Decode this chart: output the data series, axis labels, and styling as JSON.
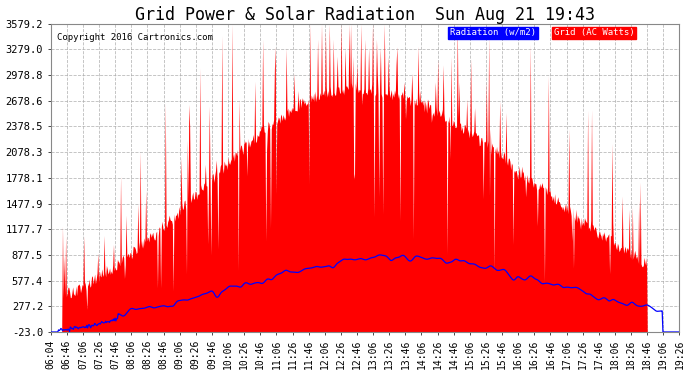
{
  "title": "Grid Power & Solar Radiation  Sun Aug 21 19:43",
  "copyright": "Copyright 2016 Cartronics.com",
  "legend_radiation": "Radiation (w/m2)",
  "legend_grid": "Grid (AC Watts)",
  "y_ticks": [
    -23.0,
    277.2,
    577.4,
    877.5,
    1177.7,
    1477.9,
    1778.1,
    2078.3,
    2378.5,
    2678.6,
    2978.8,
    3279.0,
    3579.2
  ],
  "y_min": -23.0,
  "y_max": 3579.2,
  "background_color": "#ffffff",
  "plot_bg_color": "#ffffff",
  "grid_color": "#aaaaaa",
  "red_color": "#ff0000",
  "blue_color": "#0000ff",
  "title_fontsize": 12,
  "tick_fontsize": 7.5,
  "x_tick_labels": [
    "06:04",
    "06:46",
    "07:06",
    "07:26",
    "07:46",
    "08:06",
    "08:26",
    "08:46",
    "09:06",
    "09:26",
    "09:46",
    "10:06",
    "10:26",
    "10:46",
    "11:06",
    "11:26",
    "11:46",
    "12:06",
    "12:26",
    "12:46",
    "13:06",
    "13:26",
    "13:46",
    "14:06",
    "14:26",
    "14:46",
    "15:06",
    "15:26",
    "15:46",
    "16:06",
    "16:26",
    "16:46",
    "17:06",
    "17:26",
    "17:46",
    "18:06",
    "18:26",
    "18:46",
    "19:06",
    "19:26"
  ]
}
